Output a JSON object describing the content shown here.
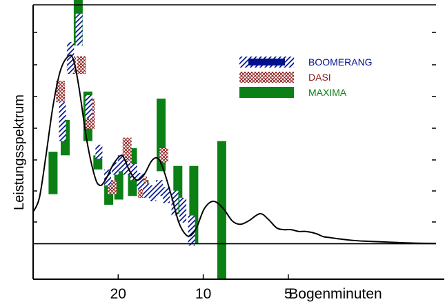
{
  "chart_data": {
    "type": "scatter",
    "title": "",
    "xlabel": "Bogenminuten",
    "ylabel": "Leistungsspektrum",
    "x_ticks": [
      {
        "label": "20",
        "value": 20
      },
      {
        "label": "10",
        "value": 10
      },
      {
        "label": "5",
        "value": 5
      }
    ],
    "xlim": [
      40,
      1.5
    ],
    "ylim": [
      -0.2,
      1.35
    ],
    "grid": false,
    "legend_position": "top-right",
    "model_curve": {
      "x": [
        40,
        38,
        36,
        34,
        32,
        30,
        28.8,
        27.5,
        25.8,
        24.2,
        23.2,
        22.2,
        20.8,
        19.5,
        18.9,
        18.2,
        17.2,
        16.2,
        15.2,
        14.4,
        13.7,
        12.9,
        12.2,
        11.5,
        11,
        10.5,
        9.9,
        9.2,
        8.5,
        7.9,
        7.4,
        6.9,
        6.3,
        5.9,
        5.5,
        5.2,
        4.9,
        4.6,
        4.35,
        4.15,
        3.95,
        3.75,
        3.55,
        3.4,
        3.2,
        3,
        2.7,
        2.4,
        2.1,
        1.8,
        1.5
      ],
      "y": [
        0.18,
        0.26,
        0.5,
        0.78,
        0.98,
        1.06,
        1.04,
        0.88,
        0.58,
        0.38,
        0.33,
        0.36,
        0.45,
        0.5,
        0.47,
        0.41,
        0.36,
        0.39,
        0.47,
        0.48,
        0.4,
        0.26,
        0.12,
        0.05,
        0.05,
        0.1,
        0.2,
        0.24,
        0.2,
        0.13,
        0.11,
        0.13,
        0.17,
        0.14,
        0.09,
        0.08,
        0.08,
        0.07,
        0.07,
        0.065,
        0.055,
        0.04,
        0.035,
        0.03,
        0.025,
        0.02,
        0.015,
        0.012,
        0.008,
        0.004,
        0.002
      ]
    },
    "series": [
      {
        "name": "BOOMERANG",
        "color": "#00118c",
        "pattern": "hatch",
        "points": [
          {
            "x": 31.5,
            "y_low": 0.58,
            "y_high": 0.8
          },
          {
            "x": 29.5,
            "y_low": 0.96,
            "y_high": 1.14
          },
          {
            "x": 27.5,
            "y_low": 1.12,
            "y_high": 1.3
          },
          {
            "x": 25.4,
            "y_low": 0.71,
            "y_high": 0.84
          },
          {
            "x": 23.4,
            "y_low": 0.48,
            "y_high": 0.56
          },
          {
            "x": 21.8,
            "y_low": 0.33,
            "y_high": 0.42
          },
          {
            "x": 20.5,
            "y_low": 0.39,
            "y_high": 0.46
          },
          {
            "x": 19.5,
            "y_low": 0.41,
            "y_high": 0.5
          },
          {
            "x": 18.7,
            "y_low": 0.39,
            "y_high": 0.47
          },
          {
            "x": 17.6,
            "y_low": 0.36,
            "y_high": 0.45
          },
          {
            "x": 16.7,
            "y_low": 0.31,
            "y_high": 0.4
          },
          {
            "x": 15.9,
            "y_low": 0.26,
            "y_high": 0.34
          },
          {
            "x": 15.1,
            "y_low": 0.24,
            "y_high": 0.33
          },
          {
            "x": 14.3,
            "y_low": 0.27,
            "y_high": 0.36
          },
          {
            "x": 13.5,
            "y_low": 0.23,
            "y_high": 0.32
          },
          {
            "x": 12.6,
            "y_low": 0.16,
            "y_high": 0.3
          },
          {
            "x": 11.8,
            "y_low": 0.12,
            "y_high": 0.26
          },
          {
            "x": 11.0,
            "y_low": -0.01,
            "y_high": 0.16
          }
        ]
      },
      {
        "name": "DASI",
        "color": "#8c1a1a",
        "pattern": "crosshatch",
        "points": [
          {
            "x": 32.0,
            "y_low": 0.8,
            "y_high": 0.92
          },
          {
            "x": 29.3,
            "y_low": 0.96,
            "y_high": 1.06
          },
          {
            "x": 27.0,
            "y_low": 0.96,
            "y_high": 1.06
          },
          {
            "x": 25.1,
            "y_low": 0.65,
            "y_high": 0.82
          },
          {
            "x": 21.0,
            "y_low": 0.28,
            "y_high": 0.36
          },
          {
            "x": 18.6,
            "y_low": 0.41,
            "y_high": 0.6
          },
          {
            "x": 16.4,
            "y_low": 0.26,
            "y_high": 0.38
          },
          {
            "x": 13.8,
            "y_low": 0.46,
            "y_high": 0.54
          }
        ]
      },
      {
        "name": "MAXIMA",
        "color": "#0a8015",
        "pattern": "solid",
        "points": [
          {
            "x": 34.0,
            "y_low": 0.28,
            "y_high": 0.52
          },
          {
            "x": 30.8,
            "y_low": 0.5,
            "y_high": 0.7
          },
          {
            "x": 27.7,
            "y_low": 1.12,
            "y_high": 1.42
          },
          {
            "x": 25.6,
            "y_low": 0.58,
            "y_high": 0.86
          },
          {
            "x": 23.6,
            "y_low": 0.42,
            "y_high": 0.5
          },
          {
            "x": 21.6,
            "y_low": 0.22,
            "y_high": 0.36
          },
          {
            "x": 19.9,
            "y_low": 0.25,
            "y_high": 0.42
          },
          {
            "x": 17.8,
            "y_low": 0.27,
            "y_high": 0.54
          },
          {
            "x": 16.2,
            "y_low": 0.27,
            "y_high": 0.36
          },
          {
            "x": 14.1,
            "y_low": 0.41,
            "y_high": 0.82
          },
          {
            "x": 12.3,
            "y_low": 0.17,
            "y_high": 0.44
          },
          {
            "x": 10.8,
            "y_low": 0.0,
            "y_high": 0.44
          },
          {
            "x": 8.6,
            "y_low": -0.2,
            "y_high": 0.58
          }
        ]
      }
    ]
  }
}
